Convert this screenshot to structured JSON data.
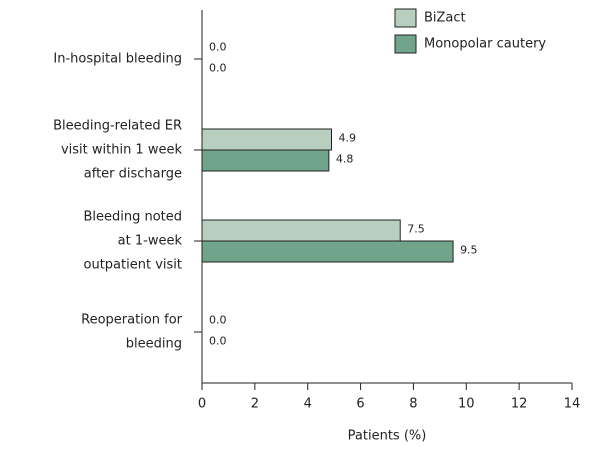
{
  "chart_data": {
    "type": "hbar",
    "categories": [
      [
        "In-hospital bleeding"
      ],
      [
        "Bleeding-related ER",
        "visit within 1 week",
        "after discharge"
      ],
      [
        "Bleeding noted",
        "at 1-week",
        "outpatient visit"
      ],
      [
        "Reoperation for",
        "bleeding"
      ]
    ],
    "series": [
      {
        "name": "BiZact",
        "color": "#b8cfbf",
        "values": [
          0,
          4.9,
          7.5,
          0
        ],
        "value_labels": [
          "0.0",
          "4.9",
          "7.5",
          "0.0"
        ]
      },
      {
        "name": "Monopolar cautery",
        "color": "#70a58b",
        "values": [
          0,
          4.8,
          9.5,
          0
        ],
        "value_labels": [
          "0.0",
          "4.8",
          "9.5",
          "0.0"
        ]
      }
    ],
    "xlabel": "Patients (%)",
    "xlim": [
      0,
      14
    ],
    "xticks": [
      0,
      2,
      4,
      6,
      8,
      10,
      12,
      14
    ],
    "legend": "top-right"
  }
}
